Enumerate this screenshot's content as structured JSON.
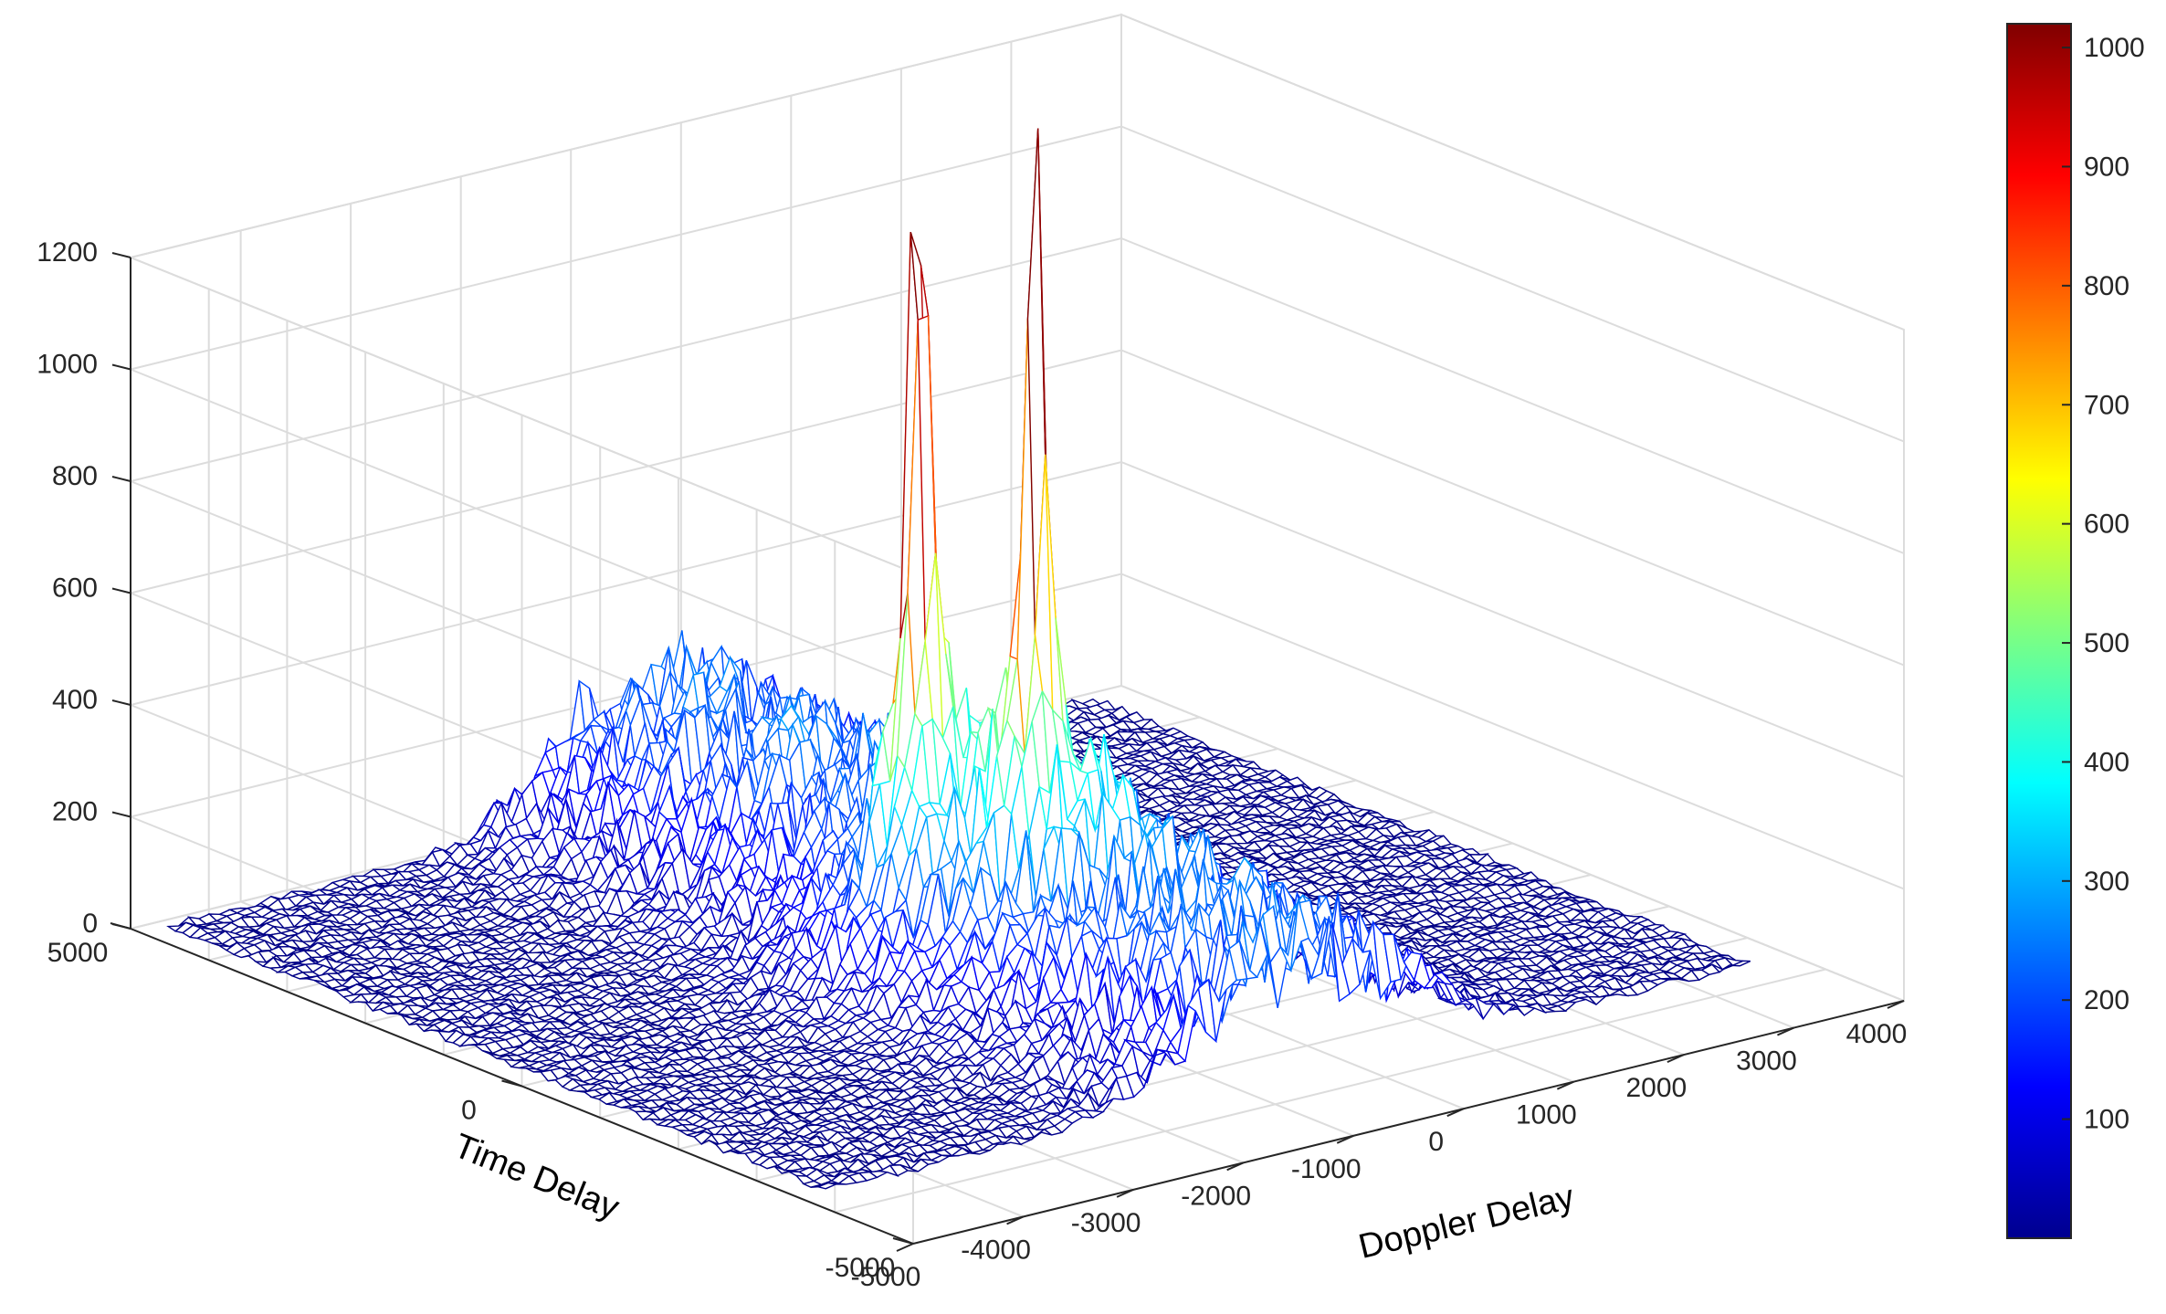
{
  "chart_data": {
    "type": "surface",
    "xlabel": "Doppler Delay",
    "ylabel": "Time Delay",
    "zlabel": "",
    "xlim": [
      -5000,
      4000
    ],
    "ylim": [
      -5000,
      5000
    ],
    "zlim": [
      0,
      1200
    ],
    "x_ticks": [
      -5000,
      -4000,
      -3000,
      -2000,
      -1000,
      0,
      1000,
      2000,
      3000,
      4000
    ],
    "y_ticks": [
      -5000,
      0,
      5000
    ],
    "z_ticks": [
      0,
      200,
      400,
      600,
      800,
      1000,
      1200
    ],
    "grid": true,
    "colormap": "jet",
    "colorbar": {
      "range": [
        0,
        1020
      ],
      "ticks": [
        100,
        200,
        300,
        400,
        500,
        600,
        700,
        800,
        900,
        1000
      ]
    },
    "surface_extent": {
      "x": [
        -4800,
        3600
      ],
      "y": [
        -3600,
        4800
      ]
    },
    "background_level": 15,
    "peaks": [
      {
        "x": -1400,
        "y": 0,
        "z": 1010
      },
      {
        "x": -900,
        "y": -800,
        "z": 920
      }
    ],
    "ridges": [
      {
        "axis": "x",
        "at": 0,
        "height": 180
      },
      {
        "axis": "x",
        "at": -1000,
        "height": 150
      }
    ]
  }
}
